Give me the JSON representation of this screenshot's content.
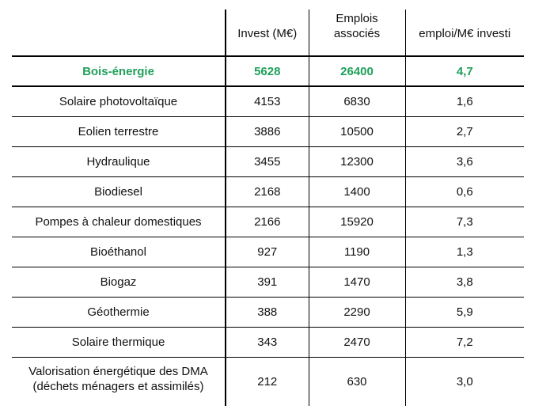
{
  "table": {
    "headers": [
      "",
      "Invest (M€)",
      "Emplois associés",
      "emploi/M€ investi"
    ],
    "highlight_color": "#1fa05a",
    "rows": [
      {
        "name": "Bois-énergie",
        "invest": "5628",
        "emplois": "26400",
        "ratio": "4,7",
        "highlighted": true
      },
      {
        "name": "Solaire photovoltaïque",
        "invest": "4153",
        "emplois": "6830",
        "ratio": "1,6"
      },
      {
        "name": "Eolien terrestre",
        "invest": "3886",
        "emplois": "10500",
        "ratio": "2,7"
      },
      {
        "name": "Hydraulique",
        "invest": "3455",
        "emplois": "12300",
        "ratio": "3,6"
      },
      {
        "name": "Biodiesel",
        "invest": "2168",
        "emplois": "1400",
        "ratio": "0,6"
      },
      {
        "name": "Pompes à chaleur domestiques",
        "invest": "2166",
        "emplois": "15920",
        "ratio": "7,3"
      },
      {
        "name": "Bioéthanol",
        "invest": "927",
        "emplois": "1190",
        "ratio": "1,3"
      },
      {
        "name": "Biogaz",
        "invest": "391",
        "emplois": "1470",
        "ratio": "3,8"
      },
      {
        "name": "Géothermie",
        "invest": "388",
        "emplois": "2290",
        "ratio": "5,9"
      },
      {
        "name": "Solaire thermique",
        "invest": "343",
        "emplois": "2470",
        "ratio": "7,2"
      },
      {
        "name": "Valorisation énergétique des DMA (déchets ménagers et assimilés)",
        "invest": "212",
        "emplois": "630",
        "ratio": "3,0"
      }
    ]
  }
}
